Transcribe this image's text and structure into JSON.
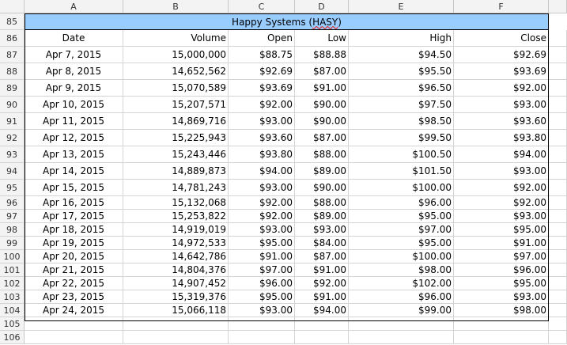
{
  "columns": [
    "A",
    "B",
    "C",
    "D",
    "E",
    "F"
  ],
  "title_row": "85",
  "title_prefix": "Happy Systems (",
  "title_ticker": "HASY",
  "title_suffix": ")",
  "header_row": "86",
  "headers": [
    "Date",
    "Volume",
    "Open",
    "Low",
    "High",
    "Close"
  ],
  "rows": [
    {
      "num": "87",
      "cells": [
        "Apr 7, 2015",
        "15,000,000",
        "$88.75",
        "$88.88",
        "$94.50",
        "$92.69"
      ]
    },
    {
      "num": "88",
      "cells": [
        "Apr 8, 2015",
        "14,652,562",
        "$92.69",
        "$87.00",
        "$95.50",
        "$93.69"
      ]
    },
    {
      "num": "89",
      "cells": [
        "Apr 9, 2015",
        "15,070,589",
        "$93.69",
        "$91.00",
        "$96.50",
        "$92.00"
      ]
    },
    {
      "num": "90",
      "cells": [
        "Apr 10, 2015",
        "15,207,571",
        "$92.00",
        "$90.00",
        "$97.50",
        "$93.00"
      ]
    },
    {
      "num": "91",
      "cells": [
        "Apr 11, 2015",
        "14,869,716",
        "$93.00",
        "$90.00",
        "$98.50",
        "$93.60"
      ]
    },
    {
      "num": "92",
      "cells": [
        "Apr 12, 2015",
        "15,225,943",
        "$93.60",
        "$87.00",
        "$99.50",
        "$93.80"
      ]
    },
    {
      "num": "93",
      "cells": [
        "Apr 13, 2015",
        "15,243,446",
        "$93.80",
        "$88.00",
        "$100.50",
        "$94.00"
      ]
    },
    {
      "num": "94",
      "cells": [
        "Apr 14, 2015",
        "14,889,873",
        "$94.00",
        "$89.00",
        "$101.50",
        "$93.00"
      ]
    },
    {
      "num": "95",
      "cells": [
        "Apr 15, 2015",
        "14,781,243",
        "$93.00",
        "$90.00",
        "$100.00",
        "$92.00"
      ]
    },
    {
      "num": "96",
      "cells": [
        "Apr 16, 2015",
        "15,132,068",
        "$92.00",
        "$88.00",
        "$96.00",
        "$92.00"
      ]
    },
    {
      "num": "97",
      "cells": [
        "Apr 17, 2015",
        "15,253,822",
        "$92.00",
        "$89.00",
        "$95.00",
        "$93.00"
      ]
    },
    {
      "num": "98",
      "cells": [
        "Apr 18, 2015",
        "14,919,019",
        "$93.00",
        "$93.00",
        "$97.00",
        "$95.00"
      ]
    },
    {
      "num": "99",
      "cells": [
        "Apr 19, 2015",
        "14,972,533",
        "$95.00",
        "$84.00",
        "$95.00",
        "$91.00"
      ]
    },
    {
      "num": "100",
      "cells": [
        "Apr 20, 2015",
        "14,642,786",
        "$91.00",
        "$87.00",
        "$100.00",
        "$97.00"
      ]
    },
    {
      "num": "101",
      "cells": [
        "Apr 21, 2015",
        "14,804,376",
        "$97.00",
        "$91.00",
        "$98.00",
        "$96.00"
      ]
    },
    {
      "num": "102",
      "cells": [
        "Apr 22, 2015",
        "14,907,452",
        "$96.00",
        "$92.00",
        "$102.00",
        "$95.00"
      ]
    },
    {
      "num": "103",
      "cells": [
        "Apr 23, 2015",
        "15,319,376",
        "$95.00",
        "$91.00",
        "$96.00",
        "$93.00"
      ]
    },
    {
      "num": "104",
      "cells": [
        "Apr 24, 2015",
        "15,066,118",
        "$93.00",
        "$94.00",
        "$99.00",
        "$98.00"
      ]
    }
  ],
  "empty_rows": [
    "105",
    "106"
  ]
}
